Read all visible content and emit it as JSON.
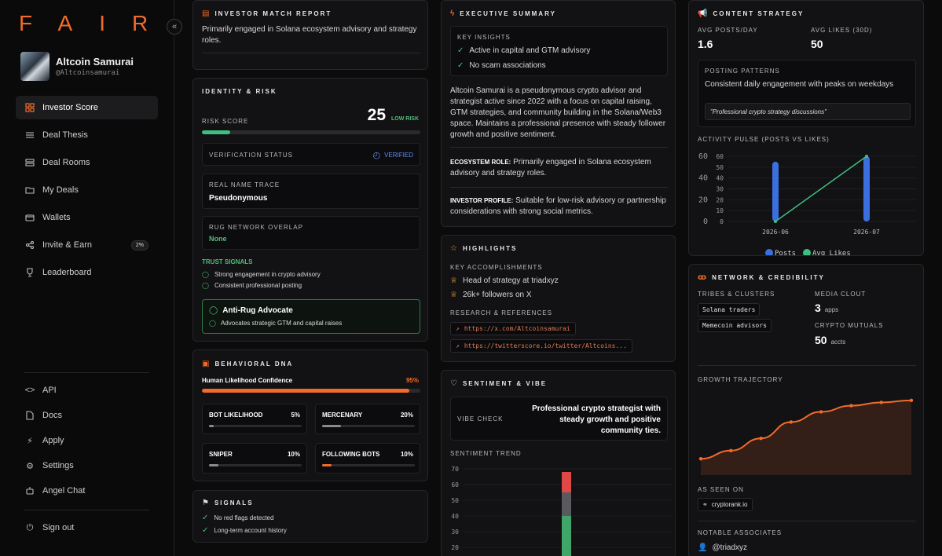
{
  "brand": {
    "logo": "FAIR"
  },
  "profile": {
    "name": "Altcoin Samurai",
    "handle": "@Altcoinsamurai"
  },
  "nav": [
    {
      "label": "Investor Score",
      "icon": "grid-icon",
      "active": true
    },
    {
      "label": "Deal Thesis",
      "icon": "sliders-icon"
    },
    {
      "label": "Deal Rooms",
      "icon": "layers-icon"
    },
    {
      "label": "My Deals",
      "icon": "folder-icon"
    },
    {
      "label": "Wallets",
      "icon": "wallet-icon"
    },
    {
      "label": "Invite & Earn",
      "icon": "share-icon",
      "badge": "2%"
    },
    {
      "label": "Leaderboard",
      "icon": "trophy-icon"
    }
  ],
  "nav_bottom": [
    {
      "label": "API",
      "icon": "code-icon"
    },
    {
      "label": "Docs",
      "icon": "doc-icon"
    },
    {
      "label": "Apply",
      "icon": "bolt-icon"
    },
    {
      "label": "Settings",
      "icon": "gear-icon"
    },
    {
      "label": "Angel Chat",
      "icon": "robot-icon"
    }
  ],
  "signout": "Sign out",
  "investor_match": {
    "title": "INVESTOR MATCH REPORT",
    "text": "Primarily engaged in Solana ecosystem advisory and strategy roles."
  },
  "identity": {
    "title": "IDENTITY & RISK",
    "risk_label": "RISK SCORE",
    "risk_score": "25",
    "risk_level": "LOW RISK",
    "risk_fraction": 0.13,
    "verification_label": "VERIFICATION STATUS",
    "verification_value": "VERIFIED",
    "real_name_label": "REAL NAME TRACE",
    "real_name_value": "Pseudonymous",
    "rug_label": "RUG NETWORK OVERLAP",
    "rug_value": "None",
    "trust_title": "TRUST SIGNALS",
    "trust": [
      "Strong engagement in crypto advisory",
      "Consistent professional posting"
    ],
    "advocate_title": "Anti-Rug Advocate",
    "advocate_text": "Advocates strategic GTM and capital raises"
  },
  "behavioral": {
    "title": "BEHAVIORAL DNA",
    "human_label": "Human Likelihood Confidence",
    "human_value": "95%",
    "human_fraction": 0.95,
    "metrics": [
      {
        "label": "BOT LIKELIHOOD",
        "value": "5%",
        "fraction": 0.05
      },
      {
        "label": "MERCENARY",
        "value": "20%",
        "fraction": 0.2
      },
      {
        "label": "SNIPER",
        "value": "10%",
        "fraction": 0.1
      },
      {
        "label": "FOLLOWING BOTS",
        "value": "10%",
        "fraction": 0.1,
        "accent": true
      }
    ]
  },
  "signals": {
    "title": "SIGNALS",
    "items": [
      "No red flags detected",
      "Long-term account history"
    ]
  },
  "executive": {
    "title": "EXECUTIVE SUMMARY",
    "insights_label": "KEY INSIGHTS",
    "insights": [
      "Active in capital and GTM advisory",
      "No scam associations"
    ],
    "summary": "Altcoin Samurai is a pseudonymous crypto advisor and strategist active since 2022 with a focus on capital raising, GTM strategies, and community building in the Solana/Web3 space. Maintains a professional presence with steady follower growth and positive sentiment.",
    "eco_label": "ECOSYSTEM ROLE:",
    "eco_text": "Primarily engaged in Solana ecosystem advisory and strategy roles.",
    "inv_label": "INVESTOR PROFILE:",
    "inv_text": "Suitable for low-risk advisory or partnership considerations with strong social metrics."
  },
  "highlights": {
    "title": "HIGHLIGHTS",
    "acc_label": "KEY ACCOMPLISHMENTS",
    "accomplishments": [
      "Head of strategy at triadxyz",
      "26k+ followers on X"
    ],
    "refs_label": "RESEARCH & REFERENCES",
    "refs": [
      "https://x.com/Altcoinsamurai",
      "https://twitterscore.io/twitter/Altcoins..."
    ]
  },
  "sentiment": {
    "title": "SENTIMENT & VIBE",
    "vibe_label": "VIBE CHECK",
    "vibe_text": "Professional crypto strategist with steady growth and positive community ties.",
    "trend_label": "SENTIMENT TREND",
    "trend_ticks": [
      "70",
      "60",
      "50",
      "40",
      "30",
      "20"
    ]
  },
  "content": {
    "title": "CONTENT STRATEGY",
    "posts_label": "AVG POSTS/DAY",
    "posts_value": "1.6",
    "likes_label": "AVG LIKES (30D)",
    "likes_value": "50",
    "patterns_label": "POSTING PATTERNS",
    "patterns_text": "Consistent daily engagement with peaks on weekdays",
    "quote": "\"Professional crypto strategy discussions\"",
    "pulse_label": "ACTIVITY PULSE (POSTS VS LIKES)"
  },
  "network": {
    "title": "NETWORK & CREDIBILITY",
    "tribes_label": "TRIBES & CLUSTERS",
    "tribes": [
      "Solana traders",
      "Memecoin advisors"
    ],
    "clout_label": "MEDIA CLOUT",
    "clout_value": "3",
    "clout_unit": "apps",
    "mutuals_label": "CRYPTO MUTUALS",
    "mutuals_value": "50",
    "mutuals_unit": "accts",
    "growth_label": "GROWTH TRAJECTORY",
    "seen_label": "AS SEEN ON",
    "seen": [
      "cryptorank.io"
    ],
    "assoc_label": "NOTABLE ASSOCIATES",
    "assoc": [
      "@triadxyz"
    ]
  },
  "chart_data": [
    {
      "type": "line",
      "x": [
        "2026-06",
        "2026-07"
      ],
      "series": [
        {
          "name": "Posts",
          "values": [
            55,
            60
          ],
          "color": "#3b6fe0"
        },
        {
          "name": "Avg Likes",
          "values": [
            0,
            60
          ],
          "color": "#3fbf7f"
        }
      ],
      "left_ticks": [
        "60",
        "40",
        "20",
        "0"
      ],
      "right_ticks": [
        "60",
        "50",
        "40",
        "30",
        "20",
        "10",
        "0"
      ],
      "ylim": [
        0,
        60
      ],
      "legend": "bottom"
    },
    {
      "type": "line",
      "values": [
        4,
        6,
        9,
        13,
        15.5,
        17,
        17.8,
        18.3
      ],
      "color": "#f26b2a"
    },
    {
      "type": "bar",
      "ylim": [
        20,
        70
      ],
      "ticks": [
        "70",
        "60",
        "50",
        "40",
        "30",
        "20"
      ],
      "segments": [
        {
          "from": 20,
          "to": 50,
          "color": "#3fa568"
        },
        {
          "from": 50,
          "to": 65,
          "color": "#5a5a5e"
        },
        {
          "from": 65,
          "to": 68,
          "color": "#e04848"
        }
      ]
    }
  ]
}
